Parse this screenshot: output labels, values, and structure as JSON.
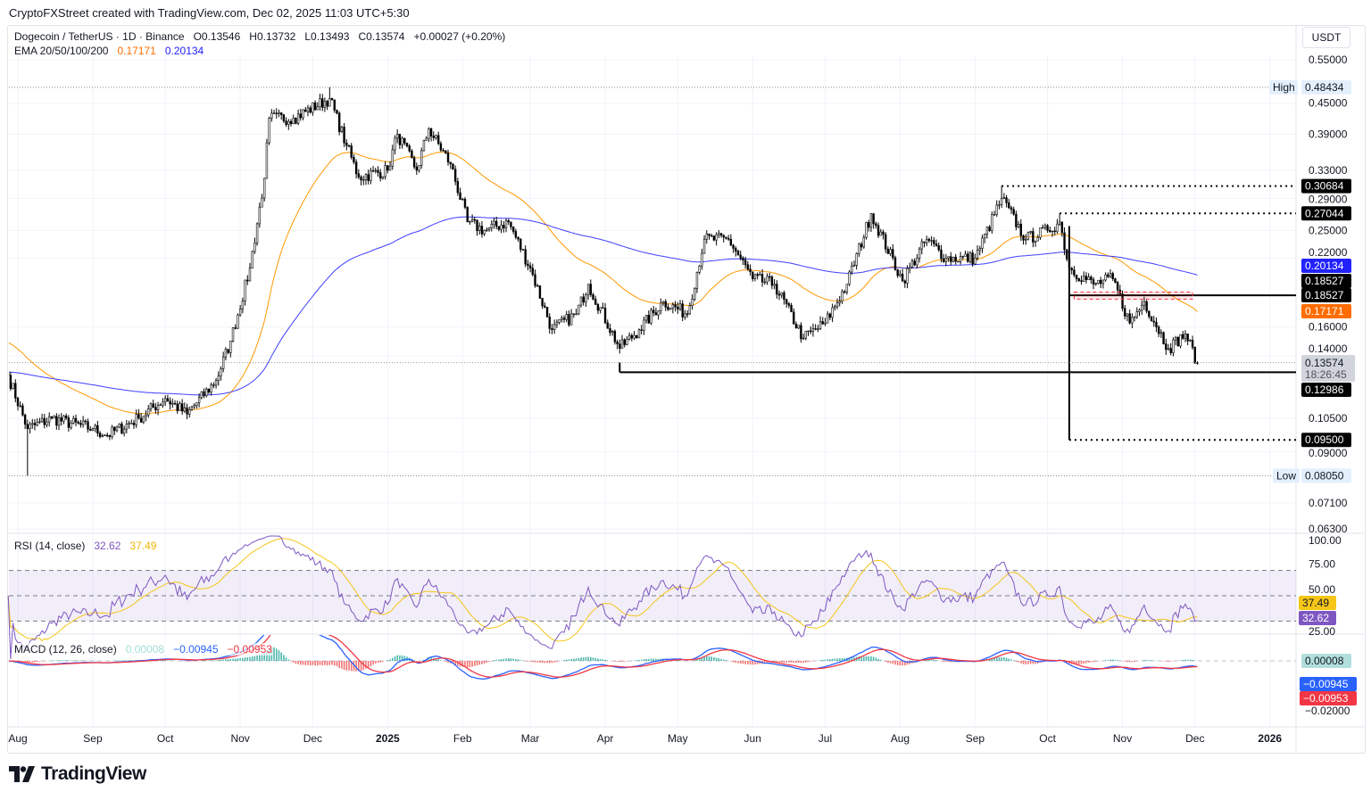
{
  "credit": "CryptoFXStreet created with TradingView.com, Dec 02, 2025 11:03 UTC+5:30",
  "legend": {
    "symbol": "Dogecoin / TetherUS · 1D · Binance",
    "open": "O0.13546",
    "high": "H0.13732",
    "low": "L0.13493",
    "close": "C0.13574",
    "change": "+0.00027 (+0.20%)",
    "ema_label": "EMA 20/50/100/200",
    "ema50": "0.17171",
    "ema200": "0.20134"
  },
  "currency": "USDT",
  "rsi_legend": {
    "label": "RSI (14, close)",
    "rsi": "32.62",
    "ma": "37.49"
  },
  "macd_legend": {
    "label": "MACD (12, 26, close)",
    "hist": "0.00008",
    "macd": "−0.00945",
    "signal": "−0.00953"
  },
  "logo_text": "TradingView",
  "colors": {
    "ema50": "#ff9800",
    "ema200": "#3f3fff",
    "rsi": "#7e57c2",
    "rsi_ma": "#f5c518",
    "macd": "#2962ff",
    "signal": "#f23645",
    "hist_up": "#26a69a",
    "hist_down": "#ef5350",
    "candle": "#000000"
  },
  "chart_data": {
    "type": "candlestick",
    "scale": "log",
    "price_ticks": [
      "0.55000",
      "0.45000",
      "0.39000",
      "0.33000",
      "0.29000",
      "0.25000",
      "0.22000",
      "0.16000",
      "0.14000",
      "0.10500",
      "0.09000",
      "0.07100",
      "0.06300"
    ],
    "time_ticks": [
      {
        "label": "Aug",
        "date": "2024-08-01"
      },
      {
        "label": "Sep",
        "date": "2024-09-01"
      },
      {
        "label": "Oct",
        "date": "2024-10-01"
      },
      {
        "label": "Nov",
        "date": "2024-11-01"
      },
      {
        "label": "Dec",
        "date": "2024-12-01"
      },
      {
        "label": "2025",
        "date": "2025-01-01",
        "bold": true
      },
      {
        "label": "Feb",
        "date": "2025-02-01"
      },
      {
        "label": "Mar",
        "date": "2025-03-01"
      },
      {
        "label": "Apr",
        "date": "2025-04-01"
      },
      {
        "label": "May",
        "date": "2025-05-01"
      },
      {
        "label": "Jun",
        "date": "2025-06-01"
      },
      {
        "label": "Jul",
        "date": "2025-07-01"
      },
      {
        "label": "Aug",
        "date": "2025-08-01"
      },
      {
        "label": "Sep",
        "date": "2025-09-01"
      },
      {
        "label": "Oct",
        "date": "2025-10-01"
      },
      {
        "label": "Nov",
        "date": "2025-11-01"
      },
      {
        "label": "Dec",
        "date": "2025-12-01"
      },
      {
        "label": "2026",
        "date": "2026-01-01",
        "bold": true
      }
    ],
    "close_path": [
      [
        "2024-07-28",
        0.128
      ],
      [
        "2024-08-05",
        0.1,
        {
          "low": 0.0805
        }
      ],
      [
        "2024-08-15",
        0.105
      ],
      [
        "2024-09-01",
        0.1
      ],
      [
        "2024-09-07",
        0.097
      ],
      [
        "2024-09-20",
        0.105
      ],
      [
        "2024-10-01",
        0.115
      ],
      [
        "2024-10-10",
        0.107
      ],
      [
        "2024-10-22",
        0.125
      ],
      [
        "2024-10-28",
        0.15
      ],
      [
        "2024-11-05",
        0.21
      ],
      [
        "2024-11-11",
        0.318
      ],
      [
        "2024-11-13",
        0.42
      ],
      [
        "2024-11-23",
        0.42
      ],
      [
        "2024-12-08",
        0.46,
        {
          "high": 0.48434
        }
      ],
      [
        "2024-12-15",
        0.37
      ],
      [
        "2024-12-20",
        0.32
      ],
      [
        "2025-01-01",
        0.33
      ],
      [
        "2025-01-05",
        0.39
      ],
      [
        "2025-01-13",
        0.33
      ],
      [
        "2025-01-18",
        0.4
      ],
      [
        "2025-01-27",
        0.34
      ],
      [
        "2025-02-03",
        0.26
      ],
      [
        "2025-02-10",
        0.25
      ],
      [
        "2025-02-20",
        0.26
      ],
      [
        "2025-03-01",
        0.21
      ],
      [
        "2025-03-10",
        0.158
      ],
      [
        "2025-03-20",
        0.17
      ],
      [
        "2025-03-25",
        0.195
      ],
      [
        "2025-04-07",
        0.145
      ],
      [
        "2025-04-15",
        0.158
      ],
      [
        "2025-04-25",
        0.18
      ],
      [
        "2025-05-05",
        0.17
      ],
      [
        "2025-05-12",
        0.24
      ],
      [
        "2025-05-22",
        0.24
      ],
      [
        "2025-06-01",
        0.2
      ],
      [
        "2025-06-10",
        0.195
      ],
      [
        "2025-06-22",
        0.152
      ],
      [
        "2025-07-01",
        0.163
      ],
      [
        "2025-07-10",
        0.195
      ],
      [
        "2025-07-20",
        0.27
      ],
      [
        "2025-08-02",
        0.198
      ],
      [
        "2025-08-12",
        0.24
      ],
      [
        "2025-08-20",
        0.22
      ],
      [
        "2025-09-01",
        0.22
      ],
      [
        "2025-09-12",
        0.29,
        {
          "high": 0.30684
        }
      ],
      [
        "2025-09-22",
        0.24
      ],
      [
        "2025-10-01",
        0.25
      ],
      [
        "2025-10-06",
        0.26,
        {
          "high": 0.27044
        }
      ],
      [
        "2025-10-10",
        0.21,
        {
          "low": 0.095
        }
      ],
      [
        "2025-10-20",
        0.195
      ],
      [
        "2025-10-28",
        0.2
      ],
      [
        "2025-11-04",
        0.163
      ],
      [
        "2025-11-10",
        0.18
      ],
      [
        "2025-11-20",
        0.145
      ],
      [
        "2025-11-27",
        0.155
      ],
      [
        "2025-12-02",
        0.13574
      ]
    ],
    "levels": [
      {
        "price": 0.30684,
        "label": "0.30684",
        "style": "dotted",
        "from": "2025-09-12"
      },
      {
        "price": 0.27044,
        "label": "0.27044",
        "style": "dotted",
        "from": "2025-10-06"
      },
      {
        "price": 0.18527,
        "label": "0.18527",
        "style": "solid",
        "from": "2025-10-10"
      },
      {
        "price": 0.12986,
        "label": "0.12986",
        "style": "solid",
        "from": "2025-04-07"
      },
      {
        "price": 0.095,
        "label": "0.09500",
        "style": "dotted",
        "from": "2025-10-10"
      }
    ],
    "high": {
      "label": "High",
      "value": "0.48434",
      "price": 0.48434
    },
    "low": {
      "label": "Low",
      "value": "0.08050",
      "price": 0.0805
    },
    "badges": [
      {
        "label": "0.20134",
        "price": 0.20134,
        "color": "#2121ff"
      },
      {
        "label": "0.18527",
        "price": 0.18527,
        "color": "#000000"
      },
      {
        "label": "0.17171",
        "price": 0.17171,
        "color": "#ff6d00"
      }
    ],
    "last": {
      "value": "0.13574",
      "countdown": "18:26:45"
    },
    "rsi_ticks": [
      "100.00",
      "75.00",
      "50.00",
      "25.00"
    ],
    "rsi_badges": {
      "ma": "37.49",
      "rsi": "32.62"
    },
    "macd_ticks": [
      "−0.02000"
    ],
    "macd_badges": {
      "hist": "0.00008",
      "macd": "−0.00945",
      "signal": "−0.00953"
    }
  }
}
